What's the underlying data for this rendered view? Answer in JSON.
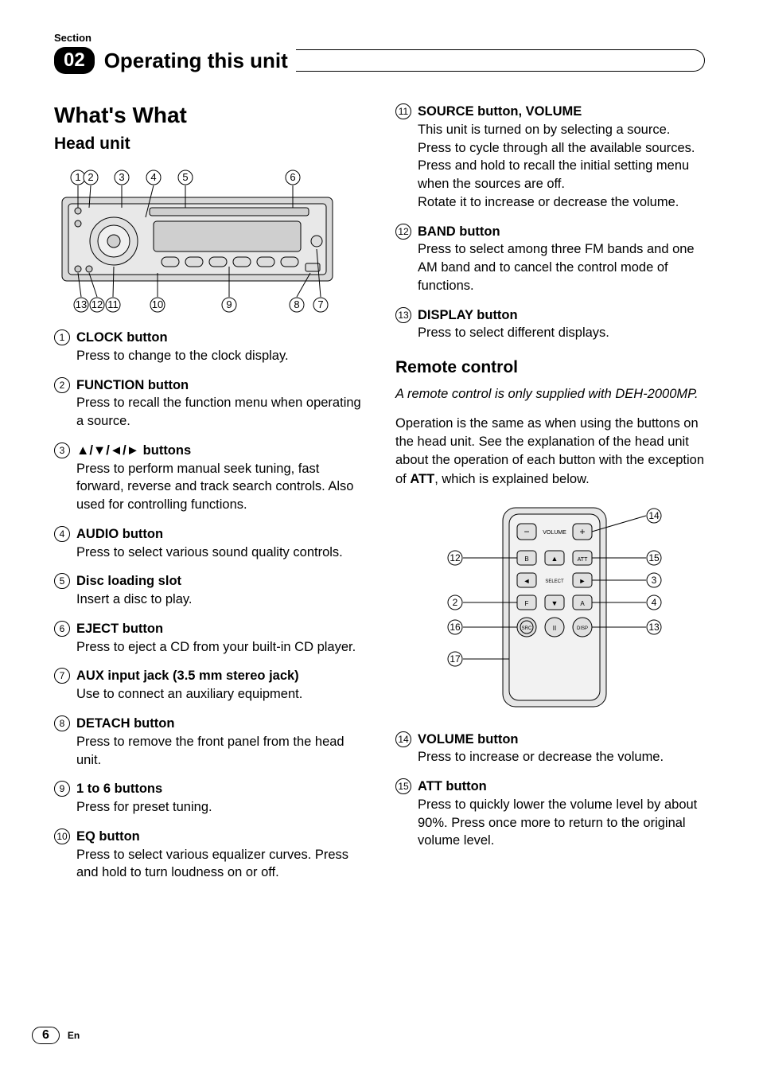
{
  "section_label": "Section",
  "section_number": "02",
  "header_title": "Operating this unit",
  "main_heading": "What's What",
  "head_unit_heading": "Head unit",
  "remote_heading": "Remote control",
  "remote_note": "A remote control is only supplied with DEH-2000MP.",
  "remote_body_1": "Operation is the same as when using the buttons on the head unit. See the explanation of the head unit about the operation of each button with the exception of ",
  "remote_body_bold": "ATT",
  "remote_body_2": ", which is explained below.",
  "page_number": "6",
  "lang": "En",
  "head_unit_callouts_top": [
    "1",
    "2",
    "3",
    "4",
    "5",
    "6"
  ],
  "head_unit_callouts_bottom": [
    "13",
    "12",
    "11",
    "10",
    "9",
    "8",
    "7"
  ],
  "remote_callouts": {
    "14": "14",
    "15": "15",
    "3": "3",
    "4": "4",
    "13": "13",
    "12": "12",
    "2": "2",
    "16": "16",
    "17": "17"
  },
  "remote_labels": {
    "volume": "VOLUME",
    "select": "SELECT",
    "b": "B",
    "f": "F",
    "a": "A",
    "att": "ATT",
    "src": "SRC",
    "disp": "DISP",
    "pause": "II",
    "minus": "−",
    "plus": "+"
  },
  "items_left": [
    {
      "n": "1",
      "title": "CLOCK button",
      "body": "Press to change to the clock display."
    },
    {
      "n": "2",
      "title": "FUNCTION button",
      "body": "Press to recall the function menu when operating a source."
    },
    {
      "n": "3",
      "title": "▲/▼/◄/► buttons",
      "body": "Press to perform manual seek tuning, fast forward, reverse and track search controls. Also used for controlling functions."
    },
    {
      "n": "4",
      "title": "AUDIO button",
      "body": "Press to select various sound quality controls."
    },
    {
      "n": "5",
      "title": "Disc loading slot",
      "body": "Insert a disc to play."
    },
    {
      "n": "6",
      "title": "EJECT button",
      "body": "Press to eject a CD from your built-in CD player."
    },
    {
      "n": "7",
      "title": "AUX input jack (3.5 mm stereo jack)",
      "body": "Use to connect an auxiliary equipment."
    },
    {
      "n": "8",
      "title": "DETACH button",
      "body": "Press to remove the front panel from the head unit."
    },
    {
      "n": "9",
      "title": "1 to 6 buttons",
      "body": "Press for preset tuning."
    },
    {
      "n": "10",
      "title": "EQ button",
      "body": "Press to select various equalizer curves. Press and hold to turn loudness on or off."
    }
  ],
  "items_right_top": [
    {
      "n": "11",
      "title": "SOURCE button, VOLUME",
      "body": "This unit is turned on by selecting a source. Press to cycle through all the available sources.\nPress and hold to recall the initial setting menu when the sources are off.\nRotate it to increase or decrease the volume."
    },
    {
      "n": "12",
      "title": "BAND button",
      "body": "Press to select among three FM bands and one AM band and to cancel the control mode of functions."
    },
    {
      "n": "13",
      "title": "DISPLAY button",
      "body": "Press to select different displays."
    }
  ],
  "items_right_bottom": [
    {
      "n": "14",
      "title": "VOLUME button",
      "body": "Press to increase or decrease the volume."
    },
    {
      "n": "15",
      "title": "ATT button",
      "body": "Press to quickly lower the volume level by about 90%. Press once more to return to the original volume level."
    }
  ],
  "colors": {
    "text": "#000000",
    "bg": "#ffffff",
    "svg_fill": "#d9d9d9",
    "svg_stroke": "#000000"
  }
}
